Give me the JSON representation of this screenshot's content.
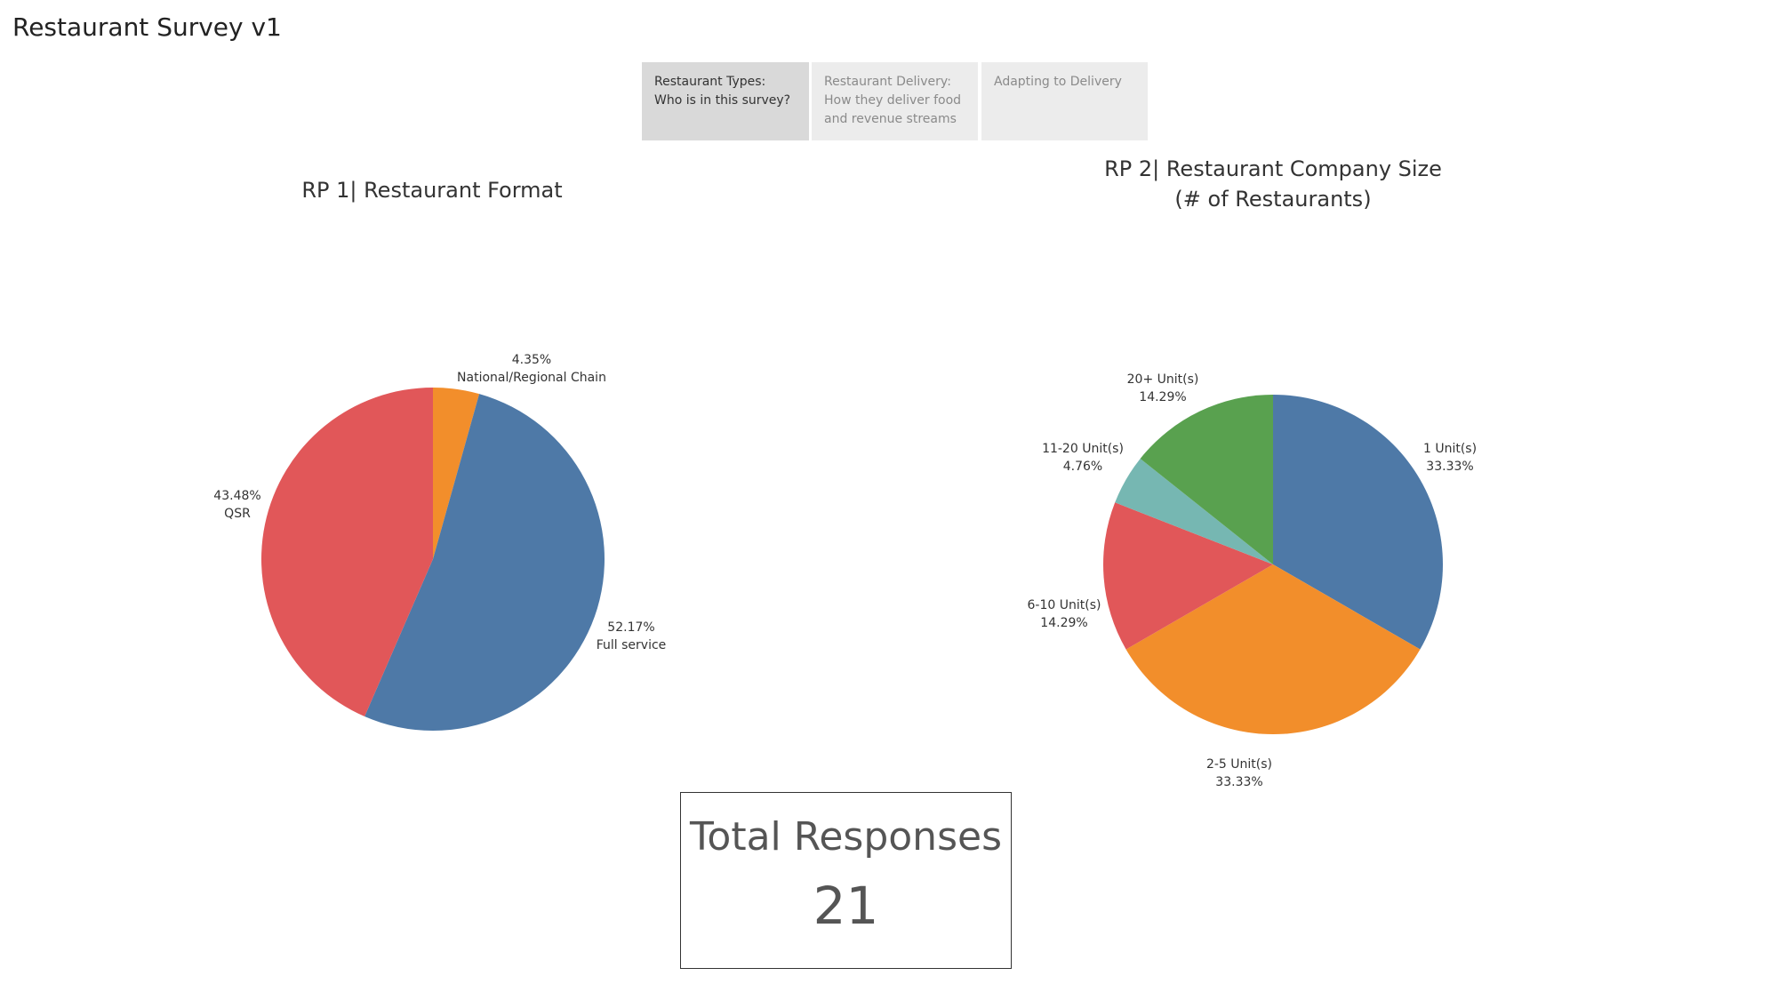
{
  "header": {
    "title": "Restaurant Survey v1"
  },
  "tabs": [
    {
      "label_line1": "Restaurant Types:",
      "label_line2": "Who is in this survey?",
      "label_line3": "",
      "active": true
    },
    {
      "label_line1": "Restaurant Delivery:",
      "label_line2": "How they deliver food",
      "label_line3": "and revenue streams",
      "active": false
    },
    {
      "label_line1": "Adapting to Delivery",
      "label_line2": "",
      "label_line3": "",
      "active": false
    }
  ],
  "chart_data": [
    {
      "type": "pie",
      "title": "RP 1| Restaurant Format",
      "slices": [
        {
          "label": "National/Regional Chain",
          "value": 4.35,
          "pct": "4.35%",
          "color": "#f28e2b"
        },
        {
          "label": "Full service",
          "value": 52.17,
          "pct": "52.17%",
          "color": "#4e79a7"
        },
        {
          "label": "QSR",
          "value": 43.48,
          "pct": "43.48%",
          "color": "#e15759"
        }
      ]
    },
    {
      "type": "pie",
      "title_line1": "RP 2| Restaurant Company Size",
      "title_line2": "(# of Restaurants)",
      "slices": [
        {
          "label": "1 Unit(s)",
          "value": 33.33,
          "pct": "33.33%",
          "color": "#4e79a7"
        },
        {
          "label": "2-5 Unit(s)",
          "value": 33.33,
          "pct": "33.33%",
          "color": "#f28e2b"
        },
        {
          "label": "6-10 Unit(s)",
          "value": 14.29,
          "pct": "14.29%",
          "color": "#e15759"
        },
        {
          "label": "11-20 Unit(s)",
          "value": 4.76,
          "pct": "4.76%",
          "color": "#76b7b2"
        },
        {
          "label": "20+ Unit(s)",
          "value": 14.29,
          "pct": "14.29%",
          "color": "#59a14f"
        }
      ]
    }
  ],
  "kpi": {
    "label": "Total Responses",
    "value": "21"
  }
}
